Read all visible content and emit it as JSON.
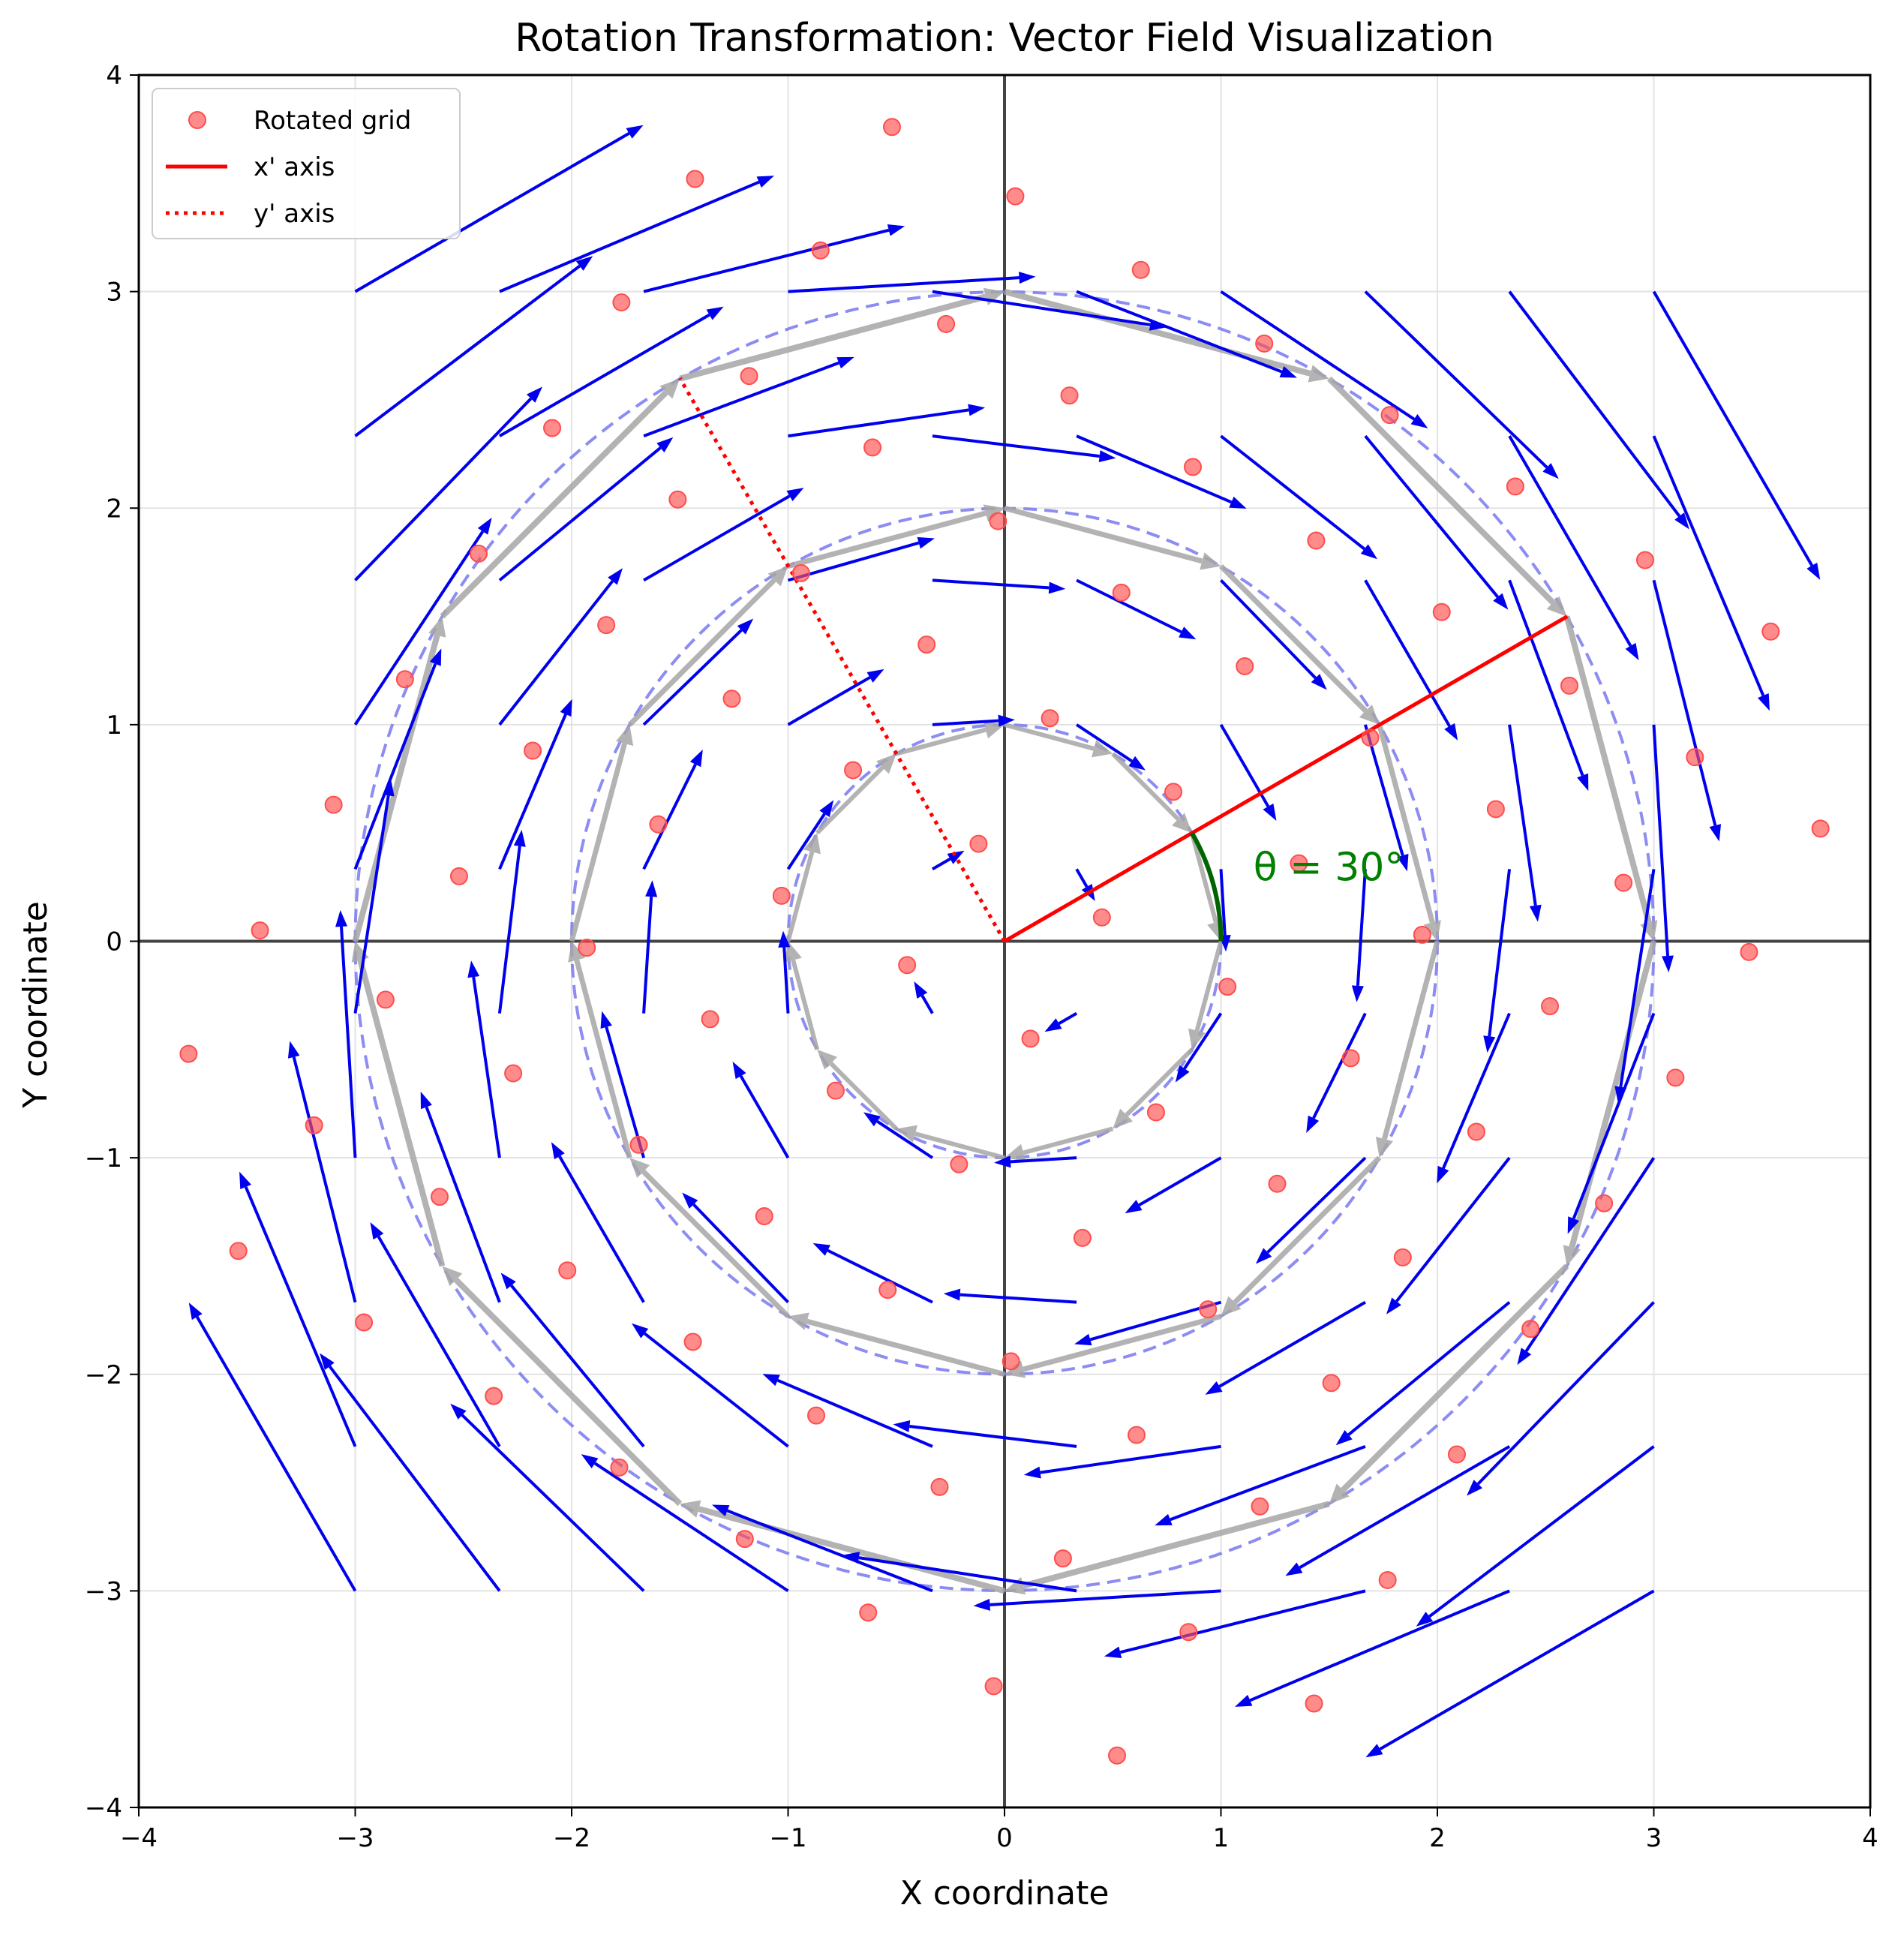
{
  "chart_data": {
    "type": "scatter",
    "title": "Rotation Transformation: Vector Field Visualization",
    "xlabel": "X coordinate",
    "ylabel": "Y coordinate",
    "xlim": [
      -4,
      4
    ],
    "ylim": [
      -4,
      4
    ],
    "xticks": [
      "−4",
      "−3",
      "−2",
      "−1",
      "0",
      "1",
      "2",
      "3",
      "4"
    ],
    "yticks": [
      "−4",
      "−3",
      "−2",
      "−1",
      "0",
      "1",
      "2",
      "3",
      "4"
    ],
    "grid": true,
    "legend_position": "top-left",
    "legend": [
      {
        "label": "Rotated grid",
        "kind": "marker",
        "color": "#ff4d4d"
      },
      {
        "label": "x' axis",
        "kind": "solid",
        "color": "#ff0000"
      },
      {
        "label": "y' axis",
        "kind": "dotted",
        "color": "#ff0000"
      }
    ],
    "rotation_angle_deg": 30,
    "angle_annotation": "θ = 30°",
    "colors": {
      "rotated_points": "#ff4d4d",
      "quiver": "#0000ee",
      "circles": "#6f6ff0",
      "tangent_arrows": "#a6a6a6",
      "rotated_axes": "#ff0000",
      "angle_arc": "#006400",
      "annotation_text": "#008000",
      "axis_lines": "#444444"
    },
    "quiver_grid": {
      "x": [
        -3,
        -2.333,
        -1.667,
        -1,
        -0.333,
        0.333,
        1,
        1.667,
        2.333,
        3
      ],
      "y": [
        -3,
        -2.333,
        -1.667,
        -1,
        -0.333,
        0.333,
        1,
        1.667,
        2.333,
        3
      ]
    },
    "circles": [
      1,
      2,
      3
    ],
    "tangent_segments_per_circle": 12,
    "x_prime_axis": {
      "start": [
        0,
        0
      ],
      "end": [
        2.6,
        1.5
      ]
    },
    "y_prime_axis": {
      "start": [
        0,
        0
      ],
      "end": [
        -1.5,
        2.6
      ]
    },
    "rotated_grid_points": [
      [
        -3.77,
        -0.52
      ],
      [
        -3.54,
        -1.43
      ],
      [
        -3.44,
        0.05
      ],
      [
        -3.19,
        -0.85
      ],
      [
        -3.1,
        0.63
      ],
      [
        -2.96,
        -1.76
      ],
      [
        -2.86,
        -0.27
      ],
      [
        -2.77,
        1.21
      ],
      [
        -2.61,
        -1.18
      ],
      [
        -2.52,
        0.3
      ],
      [
        -2.43,
        1.79
      ],
      [
        -2.36,
        -2.1
      ],
      [
        -2.27,
        -0.61
      ],
      [
        -2.18,
        0.88
      ],
      [
        -2.09,
        2.37
      ],
      [
        -2.02,
        -1.52
      ],
      [
        -1.93,
        -0.03
      ],
      [
        -1.84,
        1.46
      ],
      [
        -1.78,
        -2.43
      ],
      [
        -1.77,
        2.95
      ],
      [
        -1.69,
        -0.94
      ],
      [
        -1.6,
        0.54
      ],
      [
        -1.51,
        2.04
      ],
      [
        -1.44,
        -1.85
      ],
      [
        -1.43,
        3.52
      ],
      [
        -1.36,
        -0.36
      ],
      [
        -1.26,
        1.12
      ],
      [
        -1.2,
        -2.76
      ],
      [
        -1.18,
        2.61
      ],
      [
        -1.11,
        -1.27
      ],
      [
        -1.03,
        0.21
      ],
      [
        -0.94,
        1.7
      ],
      [
        -0.87,
        -2.19
      ],
      [
        -0.85,
        3.19
      ],
      [
        -0.78,
        -0.69
      ],
      [
        -0.7,
        0.79
      ],
      [
        -0.63,
        -3.1
      ],
      [
        -0.61,
        2.28
      ],
      [
        -0.54,
        -1.61
      ],
      [
        -0.52,
        3.76
      ],
      [
        -0.45,
        -0.11
      ],
      [
        -0.36,
        1.37
      ],
      [
        -0.3,
        -2.52
      ],
      [
        -0.27,
        2.85
      ],
      [
        -0.21,
        -1.03
      ],
      [
        -0.12,
        0.45
      ],
      [
        -0.05,
        -3.44
      ],
      [
        -0.03,
        1.94
      ],
      [
        0.03,
        -1.94
      ],
      [
        0.05,
        3.44
      ],
      [
        0.12,
        -0.45
      ],
      [
        0.21,
        1.03
      ],
      [
        0.27,
        -2.85
      ],
      [
        0.3,
        2.52
      ],
      [
        0.36,
        -1.37
      ],
      [
        0.45,
        0.11
      ],
      [
        0.52,
        -3.76
      ],
      [
        0.54,
        1.61
      ],
      [
        0.61,
        -2.28
      ],
      [
        0.63,
        3.1
      ],
      [
        0.7,
        -0.79
      ],
      [
        0.78,
        0.69
      ],
      [
        0.85,
        -3.19
      ],
      [
        0.87,
        2.19
      ],
      [
        0.94,
        -1.7
      ],
      [
        1.03,
        -0.21
      ],
      [
        1.11,
        1.27
      ],
      [
        1.18,
        -2.61
      ],
      [
        1.2,
        2.76
      ],
      [
        1.26,
        -1.12
      ],
      [
        1.36,
        0.36
      ],
      [
        1.43,
        -3.52
      ],
      [
        1.44,
        1.85
      ],
      [
        1.51,
        -2.04
      ],
      [
        1.6,
        -0.54
      ],
      [
        1.69,
        0.94
      ],
      [
        1.77,
        -2.95
      ],
      [
        1.78,
        2.43
      ],
      [
        1.84,
        -1.46
      ],
      [
        1.93,
        0.03
      ],
      [
        2.02,
        1.52
      ],
      [
        2.09,
        -2.37
      ],
      [
        2.18,
        -0.88
      ],
      [
        2.27,
        0.61
      ],
      [
        2.36,
        2.1
      ],
      [
        2.43,
        -1.79
      ],
      [
        2.52,
        -0.3
      ],
      [
        2.61,
        1.18
      ],
      [
        2.77,
        -1.21
      ],
      [
        2.86,
        0.27
      ],
      [
        2.96,
        1.76
      ],
      [
        3.1,
        -0.63
      ],
      [
        3.19,
        0.85
      ],
      [
        3.44,
        -0.05
      ],
      [
        3.54,
        1.43
      ],
      [
        3.77,
        0.52
      ]
    ]
  }
}
